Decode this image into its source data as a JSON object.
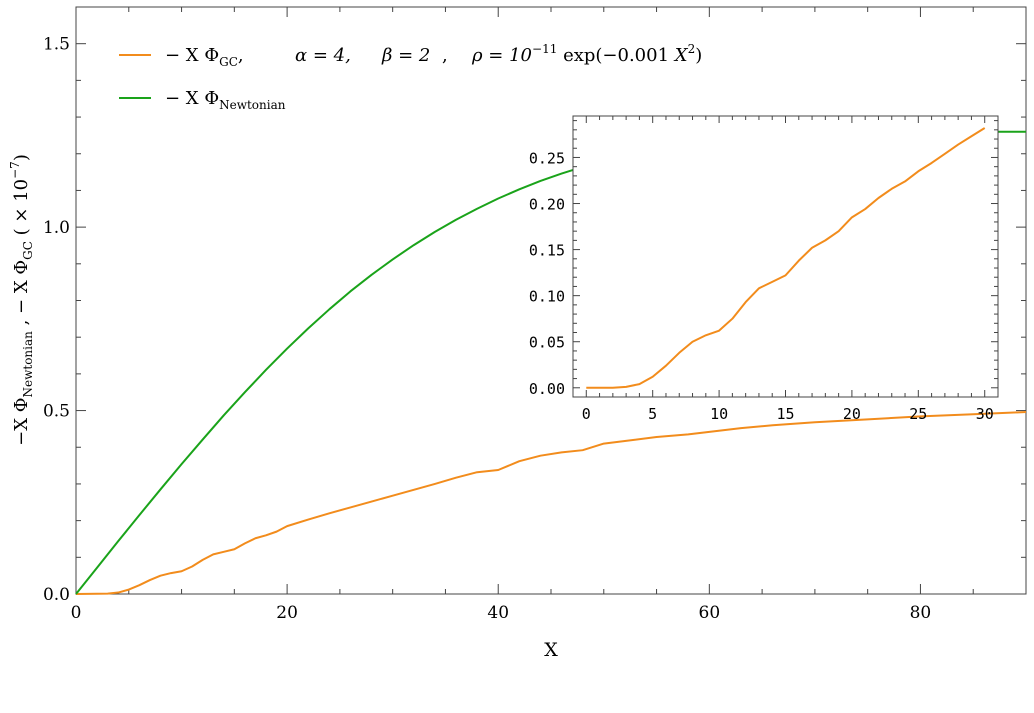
{
  "chart_data": [
    {
      "type": "line",
      "xlabel": "X",
      "ylabel_parts": [
        "−X Φ",
        "Newtonian",
        " , − X Φ",
        "GC",
        " ( × 10",
        "−7",
        ")"
      ],
      "xlim": [
        0,
        90
      ],
      "ylim": [
        0,
        1.6
      ],
      "x_ticks": [
        "0",
        "20",
        "40",
        "60",
        "80"
      ],
      "y_ticks": [
        "0.0",
        "0.5",
        "1.0",
        "1.5"
      ],
      "legend": [
        {
          "series": "gc",
          "text_parts": [
            "− X Φ",
            "GC",
            ",",
            "α = 4,",
            "β = 2",
            ",",
            "ρ = 10",
            "−11",
            " exp(−0.001 ",
            "X",
            "2",
            ")"
          ]
        },
        {
          "series": "newtonian",
          "text_parts": [
            "− X Φ",
            "Newtonian"
          ]
        }
      ],
      "legend_position": "top-left",
      "grid": false,
      "series": [
        {
          "key": "gc",
          "color": "#F28C1C",
          "x": [
            0,
            3,
            4,
            5,
            6,
            7,
            8,
            9,
            10,
            11,
            12,
            13,
            14,
            15,
            16,
            17,
            18,
            19,
            20,
            22,
            24,
            26,
            28,
            30,
            32,
            34,
            36,
            38,
            40,
            42,
            44,
            46,
            48,
            50,
            52,
            55,
            58,
            60,
            63,
            66,
            70,
            75,
            80,
            85,
            90
          ],
          "y": [
            0,
            0.001,
            0.004,
            0.012,
            0.024,
            0.038,
            0.05,
            0.057,
            0.062,
            0.075,
            0.093,
            0.108,
            0.115,
            0.122,
            0.138,
            0.152,
            0.16,
            0.17,
            0.185,
            0.203,
            0.22,
            0.236,
            0.252,
            0.268,
            0.284,
            0.3,
            0.317,
            0.332,
            0.338,
            0.362,
            0.377,
            0.386,
            0.392,
            0.41,
            0.417,
            0.428,
            0.435,
            0.442,
            0.452,
            0.46,
            0.468,
            0.476,
            0.484,
            0.49,
            0.496
          ]
        },
        {
          "key": "newtonian",
          "color": "#1AA31A",
          "x": [
            0,
            2,
            4,
            6,
            8,
            10,
            12,
            14,
            16,
            18,
            20,
            22,
            24,
            26,
            28,
            30,
            32,
            34,
            36,
            38,
            40,
            42,
            44,
            46,
            48,
            50,
            52,
            54,
            56,
            58,
            60,
            62,
            64,
            66,
            68,
            70,
            75,
            80,
            85,
            90
          ],
          "y": [
            0,
            0.072,
            0.144,
            0.215,
            0.285,
            0.354,
            0.421,
            0.487,
            0.55,
            0.611,
            0.669,
            0.724,
            0.776,
            0.825,
            0.87,
            0.912,
            0.951,
            0.987,
            1.02,
            1.05,
            1.078,
            1.103,
            1.126,
            1.146,
            1.164,
            1.18,
            1.194,
            1.206,
            1.216,
            1.225,
            1.232,
            1.238,
            1.243,
            1.247,
            1.25,
            1.253,
            1.257,
            1.259,
            1.26,
            1.26
          ]
        }
      ]
    },
    {
      "type": "line",
      "inset": true,
      "xlim": [
        -1,
        31
      ],
      "ylim": [
        -0.01,
        0.295
      ],
      "x_ticks": [
        "0",
        "5",
        "10",
        "15",
        "20",
        "25",
        "30"
      ],
      "y_ticks": [
        "0.00",
        "0.05",
        "0.10",
        "0.15",
        "0.20",
        "0.25"
      ],
      "series": [
        {
          "key": "gc",
          "color": "#F28C1C",
          "x": [
            0,
            2,
            3,
            4,
            5,
            6,
            7,
            8,
            9,
            10,
            11,
            12,
            13,
            14,
            15,
            16,
            17,
            18,
            19,
            20,
            21,
            22,
            23,
            24,
            25,
            26,
            27,
            28,
            29,
            30
          ],
          "y": [
            0,
            0,
            0.001,
            0.004,
            0.012,
            0.024,
            0.038,
            0.05,
            0.057,
            0.062,
            0.075,
            0.093,
            0.108,
            0.115,
            0.122,
            0.138,
            0.152,
            0.16,
            0.17,
            0.185,
            0.194,
            0.206,
            0.216,
            0.224,
            0.235,
            0.244,
            0.254,
            0.264,
            0.273,
            0.282
          ]
        }
      ]
    }
  ],
  "footer_text": ""
}
